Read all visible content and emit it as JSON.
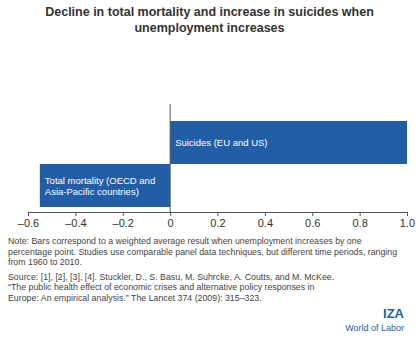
{
  "chart_data": {
    "type": "bar",
    "orientation": "horizontal",
    "title": "Decline in total mortality and increase in suicides when unemployment increases",
    "categories": [
      "Suicides (EU and US)",
      "Total mortality (OECD and Asia-Pacific countries)"
    ],
    "values": [
      1.0,
      -0.55
    ],
    "color": "#225ea8",
    "xlim": [
      -0.6,
      1.0
    ],
    "xticks": [
      {
        "value": -0.6,
        "label": "–0.6"
      },
      {
        "value": -0.4,
        "label": "–0.4"
      },
      {
        "value": -0.2,
        "label": "–0.2"
      },
      0,
      0.2,
      0.4,
      0.6,
      0.8,
      {
        "value": 1.0,
        "label": "1.0"
      }
    ],
    "grid": false,
    "annotations": [
      "Note: Bars correspond to a weighted average result when unemployment increases by one percentage point. Studies use comparable panel data techniques, but different time periods, ranging from 1960 to 2010.",
      "Source: [1], [2], [3], [4]. Stuckler, D., S. Basu, M. Suhrcke, A. Coutts, and M. McKee. “The public health effect of economic crises and alternative policy responses in Europe: An empirical analysis.” The Lancet 374 (2009): 315–323.",
      "IZA",
      "World of Labor"
    ]
  }
}
